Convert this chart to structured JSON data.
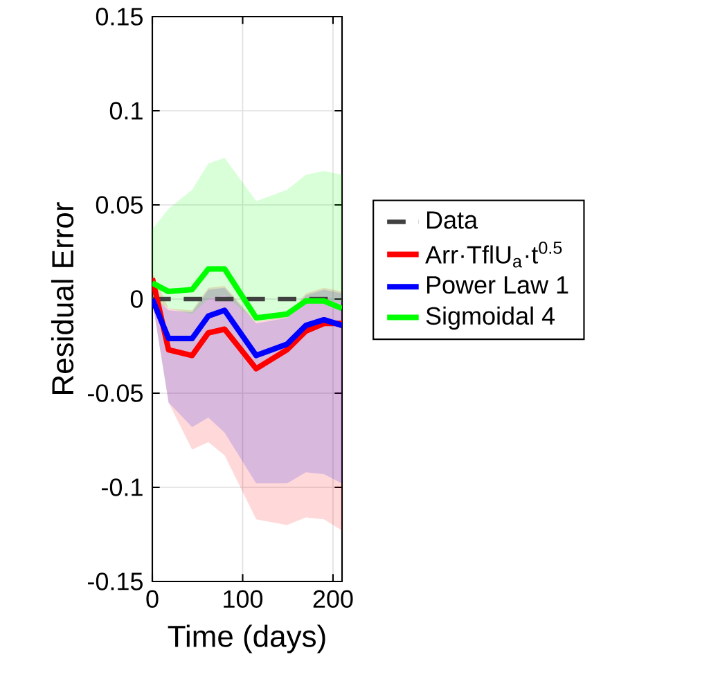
{
  "chart_data": {
    "type": "line",
    "xlabel": "Time (days)",
    "ylabel": "Residual Error",
    "xlim": [
      0,
      210
    ],
    "ylim": [
      -0.15,
      0.15
    ],
    "xticks": [
      0,
      100,
      200
    ],
    "yticks": [
      -0.15,
      -0.1,
      -0.05,
      0,
      0.05,
      0.1,
      0.15
    ],
    "grid": true,
    "legend": "right",
    "series": [
      {
        "name": "Data",
        "color": "#404040",
        "line_style": "dashed",
        "x": [
          0,
          200
        ],
        "values": [
          0,
          0
        ]
      },
      {
        "name": "Arr·TflU$_{a}$·t$^{0.5}$",
        "color": "#ff0000",
        "x": [
          0,
          18,
          44,
          62,
          80,
          115,
          149,
          170,
          190,
          210
        ],
        "values": [
          0.011,
          -0.027,
          -0.03,
          -0.018,
          -0.016,
          -0.037,
          -0.027,
          -0.017,
          -0.013,
          -0.013
        ],
        "lower": [
          -0.001,
          -0.055,
          -0.08,
          -0.076,
          -0.083,
          -0.117,
          -0.12,
          -0.116,
          -0.117,
          -0.123
        ],
        "upper": [
          0.014,
          -0.005,
          -0.006,
          0.006,
          0.007,
          -0.012,
          -0.009,
          0.003,
          0.006,
          0.004
        ]
      },
      {
        "name": "Power Law 1",
        "color": "#0000ff",
        "x": [
          0,
          18,
          44,
          62,
          80,
          115,
          149,
          170,
          190,
          210
        ],
        "values": [
          0,
          -0.021,
          -0.021,
          -0.009,
          -0.006,
          -0.03,
          -0.024,
          -0.014,
          -0.011,
          -0.014
        ],
        "lower": [
          -0.001,
          -0.055,
          -0.068,
          -0.063,
          -0.071,
          -0.098,
          -0.098,
          -0.092,
          -0.093,
          -0.098
        ],
        "upper": [
          0.002,
          -0.006,
          -0.007,
          0.005,
          0.006,
          -0.013,
          -0.01,
          0.002,
          0.005,
          0.003
        ]
      },
      {
        "name": "Sigmoidal 4",
        "color": "#00ff00",
        "x": [
          0,
          18,
          44,
          62,
          80,
          115,
          149,
          170,
          190,
          210
        ],
        "values": [
          0.0085,
          0.004,
          0.005,
          0.016,
          0.016,
          -0.01,
          -0.008,
          -0.001,
          -0.001,
          -0.005
        ],
        "lower": [
          0.0,
          -0.005,
          -0.008,
          0.0,
          0.002,
          -0.012,
          -0.01,
          -0.002,
          0.0,
          -0.002
        ],
        "upper": [
          0.037,
          0.048,
          0.058,
          0.072,
          0.075,
          0.052,
          0.058,
          0.066,
          0.068,
          0.066
        ]
      }
    ]
  }
}
